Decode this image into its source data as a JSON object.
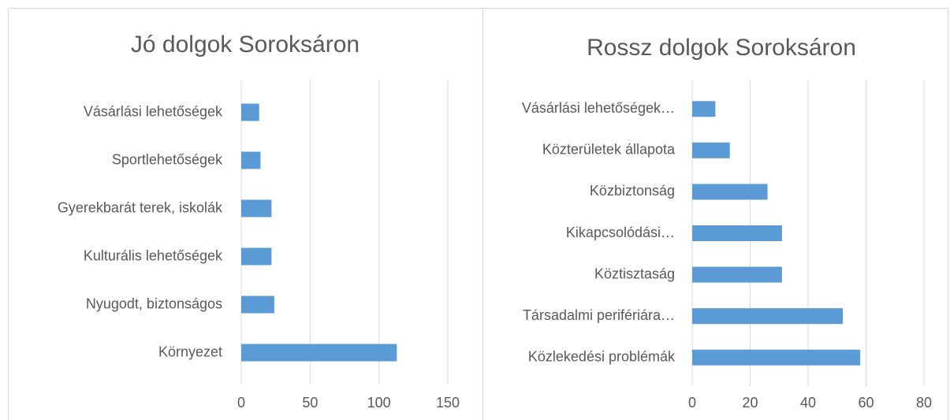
{
  "chart_data": [
    {
      "type": "bar",
      "orientation": "horizontal",
      "title": "Jó dolgok Soroksáron",
      "categories": [
        "Vásárlási lehetőségek",
        "Sportlehetőségek",
        "Gyerekbarát terek, iskolák",
        "Kulturális lehetőségek",
        "Nyugodt, biztonságos",
        "Környezet"
      ],
      "values": [
        13,
        14,
        22,
        22,
        24,
        113
      ],
      "color": "#5b9bd5",
      "xlim": [
        0,
        150
      ],
      "xticks": [
        0,
        50,
        100,
        150
      ],
      "grid": true
    },
    {
      "type": "bar",
      "orientation": "horizontal",
      "title": "Rossz dolgok Soroksáron",
      "categories": [
        "Vásárlási lehetőségek…",
        "Közterületek állapota",
        "Közbiztonság",
        "Kikapcsolódási…",
        "Köztisztaság",
        "Társadalmi perifériára…",
        "Közlekedési problémák"
      ],
      "values": [
        8,
        13,
        26,
        31,
        31,
        52,
        58
      ],
      "color": "#5b9bd5",
      "xlim": [
        0,
        80
      ],
      "xticks": [
        0,
        20,
        40,
        60,
        80
      ],
      "grid": true
    }
  ]
}
